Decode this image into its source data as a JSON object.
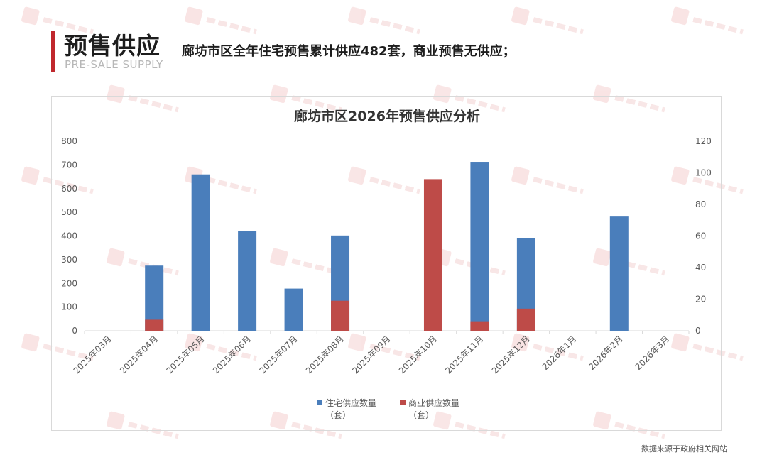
{
  "header": {
    "title": "预售供应",
    "subtitle": "PRE-SALE SUPPLY",
    "headline": "廊坊市区全年住宅预售累计供应482套，商业预售无供应；"
  },
  "colors": {
    "accent": "#c0282d",
    "residential": "#4a7ebb",
    "commercial": "#be4b48"
  },
  "source": "数据来源于政府相关网站",
  "chart_data": {
    "type": "bar",
    "title": "廊坊市区2026年预售供应分析",
    "categories": [
      "2025年03月",
      "2025年04月",
      "2025年05月",
      "2025年06月",
      "2025年07月",
      "2025年08月",
      "2025年09月",
      "2025年10月",
      "2025年11月",
      "2025年12月",
      "2026年1月",
      "2026年2月",
      "2026年3月"
    ],
    "series": [
      {
        "name": "住宅供应数量（套）",
        "axis": "left",
        "color": "#4a7ebb",
        "values": [
          0,
          275,
          660,
          420,
          178,
          402,
          0,
          0,
          713,
          390,
          0,
          482,
          0
        ]
      },
      {
        "name": "商业供应数量（套）",
        "axis": "right",
        "color": "#be4b48",
        "values": [
          0,
          7,
          0,
          0,
          0,
          19,
          0,
          96,
          6,
          14,
          0,
          0,
          0
        ]
      }
    ],
    "y_left": {
      "min": 0,
      "max": 800,
      "ticks": [
        "0",
        "100",
        "200",
        "300",
        "400",
        "500",
        "600",
        "700",
        "800"
      ]
    },
    "y_right": {
      "min": 0,
      "max": 120,
      "ticks": [
        "0",
        "20",
        "40",
        "60",
        "80",
        "100",
        "120"
      ]
    },
    "legend_position": "bottom",
    "grid": false
  }
}
